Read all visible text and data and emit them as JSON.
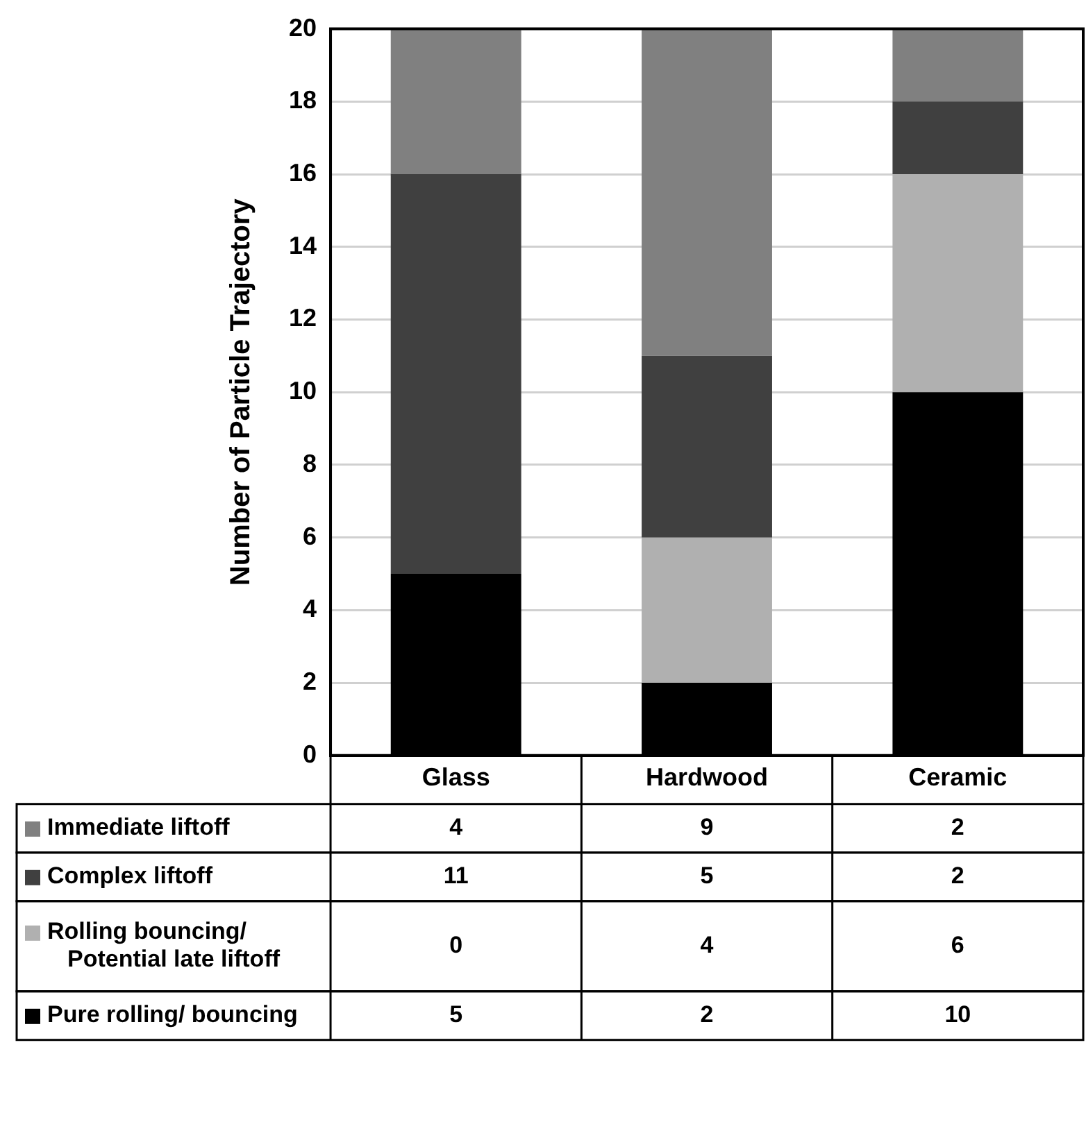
{
  "chart_data": {
    "type": "bar",
    "stacked": true,
    "ylabel": "Number of Particle Trajectory",
    "categories": [
      "Glass",
      "Hardwood",
      "Ceramic"
    ],
    "series": [
      {
        "name": "Pure rolling/ bouncing",
        "color": "#000000",
        "values": [
          5,
          2,
          10
        ]
      },
      {
        "name": "Rolling bouncing/ Potential late liftoff",
        "color": "#b0b0b0",
        "values": [
          0,
          4,
          6
        ]
      },
      {
        "name": "Complex liftoff",
        "color": "#404040",
        "values": [
          11,
          5,
          2
        ]
      },
      {
        "name": "Immediate liftoff",
        "color": "#808080",
        "values": [
          4,
          9,
          2
        ]
      }
    ],
    "ylim": [
      0,
      20
    ],
    "yticks": [
      0,
      2,
      4,
      6,
      8,
      10,
      12,
      14,
      16,
      18,
      20
    ],
    "grid": "y",
    "legend": "bottom",
    "data_labels": true
  }
}
